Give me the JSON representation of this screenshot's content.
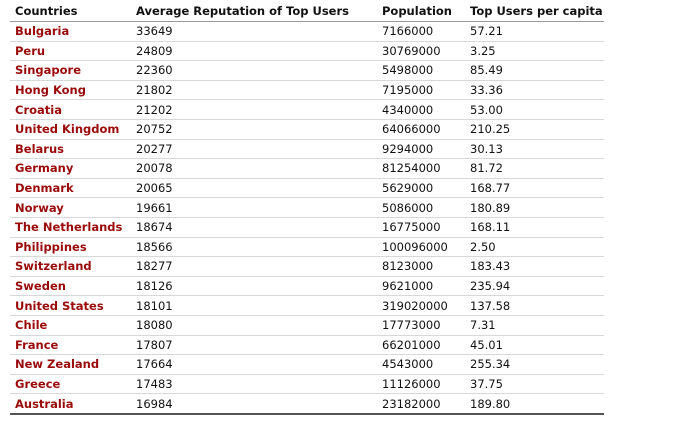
{
  "table": {
    "headers": [
      "Countries",
      "Average Reputation of Top Users",
      "Population",
      "Top Users per capita"
    ],
    "rows": [
      [
        "Bulgaria",
        "33649",
        "7166000",
        "57.21"
      ],
      [
        "Peru",
        "24809",
        "30769000",
        "3.25"
      ],
      [
        "Singapore",
        "22360",
        "5498000",
        "85.49"
      ],
      [
        "Hong Kong",
        "21802",
        "7195000",
        "33.36"
      ],
      [
        "Croatia",
        "21202",
        "4340000",
        "53.00"
      ],
      [
        "United Kingdom",
        "20752",
        "64066000",
        "210.25"
      ],
      [
        "Belarus",
        "20277",
        "9294000",
        "30.13"
      ],
      [
        "Germany",
        "20078",
        "81254000",
        "81.72"
      ],
      [
        "Denmark",
        "20065",
        "5629000",
        "168.77"
      ],
      [
        "Norway",
        "19661",
        "5086000",
        "180.89"
      ],
      [
        "The Netherlands",
        "18674",
        "16775000",
        "168.11"
      ],
      [
        "Philippines",
        "18566",
        "100096000",
        "2.50"
      ],
      [
        "Switzerland",
        "18277",
        "8123000",
        "183.43"
      ],
      [
        "Sweden",
        "18126",
        "9621000",
        "235.94"
      ],
      [
        "United States",
        "18101",
        "319020000",
        "137.58"
      ],
      [
        "Chile",
        "18080",
        "17773000",
        "7.31"
      ],
      [
        "France",
        "17807",
        "66201000",
        "45.01"
      ],
      [
        "New Zealand",
        "17664",
        "4543000",
        "255.34"
      ],
      [
        "Greece",
        "17483",
        "11126000",
        "37.75"
      ],
      [
        "Australia",
        "16984",
        "23182000",
        "189.80"
      ]
    ]
  },
  "colors": {
    "country_link": "#9b0a0a",
    "text": "#111111"
  }
}
